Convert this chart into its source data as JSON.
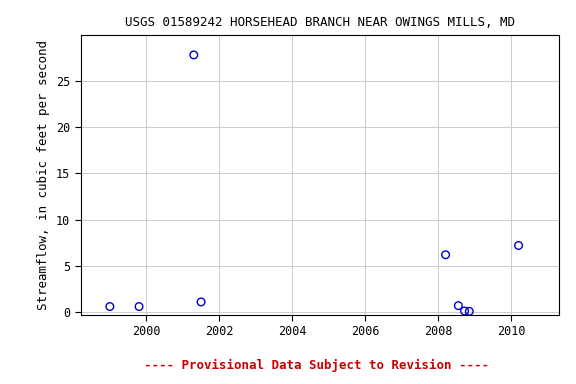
{
  "title": "USGS 01589242 HORSEHEAD BRANCH NEAR OWINGS MILLS, MD",
  "ylabel": "Streamflow, in cubic feet per second",
  "xlim": [
    1998.2,
    2011.3
  ],
  "ylim": [
    -0.3,
    30
  ],
  "yticks": [
    0,
    5,
    10,
    15,
    20,
    25
  ],
  "xticks": [
    2000,
    2002,
    2004,
    2006,
    2008,
    2010
  ],
  "x": [
    1999.0,
    1999.8,
    2001.3,
    2001.5,
    2008.2,
    2008.55,
    2008.72,
    2008.85,
    2010.2
  ],
  "y": [
    0.6,
    0.6,
    27.8,
    1.1,
    6.2,
    0.7,
    0.12,
    0.08,
    7.2
  ],
  "marker_color": "#0000cc",
  "marker_size": 5,
  "marker_lw": 1.0,
  "grid_color": "#cccccc",
  "bg_color": "#ffffff",
  "title_fontsize": 9,
  "axis_label_fontsize": 9,
  "tick_fontsize": 8.5,
  "footnote": "---- Provisional Data Subject to Revision ----",
  "footnote_color": "#cc0000",
  "footnote_fontsize": 9
}
